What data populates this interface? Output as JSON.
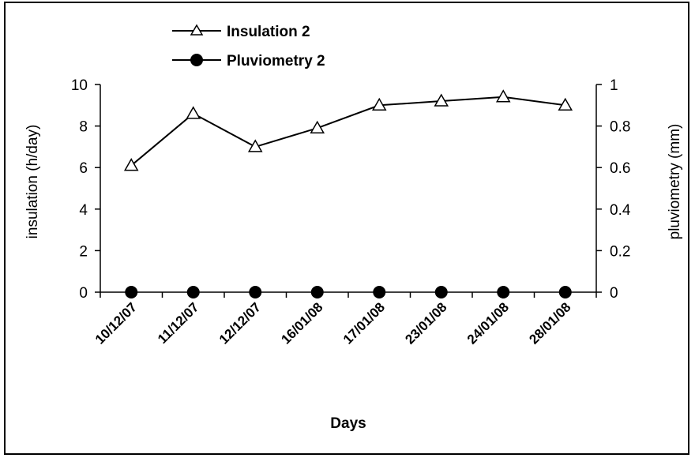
{
  "chart_data": {
    "type": "line",
    "categories": [
      "10/12/07",
      "11/12/07",
      "12/12/07",
      "16/01/08",
      "17/01/08",
      "23/01/08",
      "24/01/08",
      "28/01/08"
    ],
    "series": [
      {
        "name": "Insulation 2",
        "axis": "left",
        "marker": "open-triangle",
        "values": [
          6.1,
          8.6,
          7.0,
          7.9,
          9.0,
          9.2,
          9.4,
          9.0
        ]
      },
      {
        "name": "Pluviometry 2",
        "axis": "right",
        "marker": "filled-circle",
        "values": [
          0,
          0,
          0,
          0,
          0,
          0,
          0,
          0
        ]
      }
    ],
    "xlabel": "Days",
    "ylabel_left": "insulation (h/day)",
    "ylabel_right": "pluviometry (mm)",
    "ylim_left": [
      0,
      10
    ],
    "ylim_right": [
      0,
      1
    ],
    "yticks_left": [
      "0",
      "2",
      "4",
      "6",
      "8",
      "10"
    ],
    "yticks_right": [
      "0",
      "0.2",
      "0.4",
      "0.6",
      "0.8",
      "1"
    ],
    "grid": false,
    "legend_position": "top-left"
  },
  "colors": {
    "line": "#000000",
    "marker_fill_open": "#ffffff",
    "marker_fill_solid": "#000000"
  }
}
